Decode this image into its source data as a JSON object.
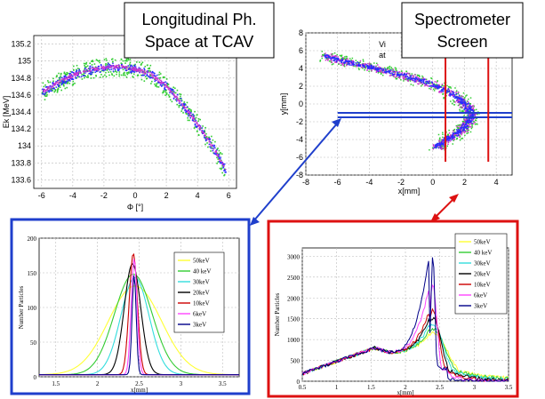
{
  "colors": {
    "blue": "#1f3fcc",
    "red": "#dd1111",
    "marker_blue": "#2a2aff",
    "marker_green": "#33cc33",
    "marker_purple": "#cc33cc"
  },
  "titles": {
    "top_left": {
      "lines": [
        "Longitudinal Ph.",
        "Space at TCAV"
      ]
    },
    "top_right": {
      "lines": [
        "Spectrometer",
        "Screen"
      ]
    },
    "partial_text": [
      "Vi",
      "at"
    ]
  },
  "chart_data": [
    {
      "type": "scatter",
      "xlabel": "Φ [°]",
      "ylabel": "Ek [MeV]",
      "xlim": [
        -6.5,
        6.5
      ],
      "ylim": [
        133.5,
        135.3
      ],
      "xticks": [
        -6,
        -4,
        -2,
        0,
        2,
        4,
        6
      ],
      "yticks": [
        133.6,
        133.8,
        134,
        134.2,
        134.4,
        134.6,
        134.8,
        135,
        135.2
      ],
      "grid": true,
      "centerline": {
        "x": [
          -6,
          -5,
          -4,
          -3,
          -2,
          -1,
          0,
          1,
          2,
          3,
          4,
          5,
          5.8
        ],
        "y": [
          134.64,
          134.75,
          134.84,
          134.9,
          134.93,
          134.94,
          134.91,
          134.85,
          134.7,
          134.5,
          134.25,
          133.98,
          133.72
        ]
      }
    },
    {
      "type": "scatter",
      "xlabel": "x[mm]",
      "ylabel": "y[mm]",
      "xlim": [
        -8,
        5
      ],
      "ylim": [
        -8,
        8
      ],
      "xticks": [
        -8,
        -6,
        -4,
        -2,
        0,
        2,
        4
      ],
      "yticks": [
        -8,
        -6,
        -4,
        -2,
        0,
        2,
        4,
        6,
        8
      ],
      "grid": true,
      "centerline": {
        "x": [
          -6.8,
          -6,
          -5,
          -4,
          -3,
          -2,
          -1,
          0,
          1,
          1.8,
          2.2,
          2.4,
          2.2,
          1.8,
          1.2,
          0.6,
          0.2
        ],
        "y": [
          5.5,
          5.0,
          4.6,
          4.2,
          3.8,
          3.3,
          2.8,
          2.2,
          1.4,
          0.4,
          -0.4,
          -1.2,
          -2.0,
          -2.8,
          -3.5,
          -4.2,
          -4.8
        ]
      },
      "blue_lines_y": [
        -1.0,
        -1.5
      ],
      "red_lines_x": [
        0.8,
        3.5
      ]
    },
    {
      "type": "line",
      "xlabel": "x[mm]",
      "ylabel": "Number Particles",
      "xlim": [
        1.3,
        3.7
      ],
      "ylim": [
        0,
        200
      ],
      "xticks": [
        1.5,
        2,
        2.5,
        3,
        3.5
      ],
      "ytick_labels": [
        "0",
        "50",
        "100",
        "150",
        "200"
      ],
      "yticks": [
        0,
        50,
        100,
        150,
        200
      ],
      "grid": true,
      "legend_position": "top-right",
      "series": [
        {
          "name": "50keV",
          "color": "#ffff33",
          "center": 2.45,
          "width": 0.45,
          "peak": 128
        },
        {
          "name": "40 keV",
          "color": "#33cc33",
          "center": 2.43,
          "width": 0.32,
          "peak": 145
        },
        {
          "name": "30keV",
          "color": "#33dddd",
          "center": 2.45,
          "width": 0.24,
          "peak": 140
        },
        {
          "name": "20keV",
          "color": "#000000",
          "center": 2.42,
          "width": 0.14,
          "peak": 160
        },
        {
          "name": "10keV",
          "color": "#cc0000",
          "center": 2.43,
          "width": 0.07,
          "peak": 175
        },
        {
          "name": "6keV",
          "color": "#ff44ff",
          "center": 2.44,
          "width": 0.05,
          "peak": 168
        },
        {
          "name": "3keV",
          "color": "#000088",
          "center": 2.44,
          "width": 0.035,
          "peak": 145
        }
      ]
    },
    {
      "type": "line",
      "xlabel": "x[mm]",
      "ylabel": "Number Particles",
      "xlim": [
        0.5,
        3.5
      ],
      "ylim": [
        0,
        3200
      ],
      "xticks": [
        0.5,
        1,
        1.5,
        2,
        2.5,
        3,
        3.5
      ],
      "xtick_labels": [
        "0.5",
        "1",
        "1.5",
        "2",
        "2.5",
        "3",
        "3.5"
      ],
      "yticks": [
        0,
        500,
        1000,
        1500,
        2000,
        2500,
        3000
      ],
      "ytick_labels": [
        "0",
        "500",
        "1000",
        "1500",
        "2000",
        "2500",
        "3000"
      ],
      "grid": true,
      "legend_position": "top-right",
      "series": [
        {
          "name": "50keV",
          "color": "#ffff33",
          "peak": 1150
        },
        {
          "name": "40 keV",
          "color": "#33cc33",
          "peak": 1250
        },
        {
          "name": "30keV",
          "color": "#33dddd",
          "peak": 1350
        },
        {
          "name": "20keV",
          "color": "#000000",
          "peak": 1500
        },
        {
          "name": "10keV",
          "color": "#cc0000",
          "peak": 1700
        },
        {
          "name": "6keV",
          "color": "#ff44ff",
          "peak": 2300
        },
        {
          "name": "3keV",
          "color": "#000088",
          "peak": 3050
        }
      ]
    }
  ]
}
